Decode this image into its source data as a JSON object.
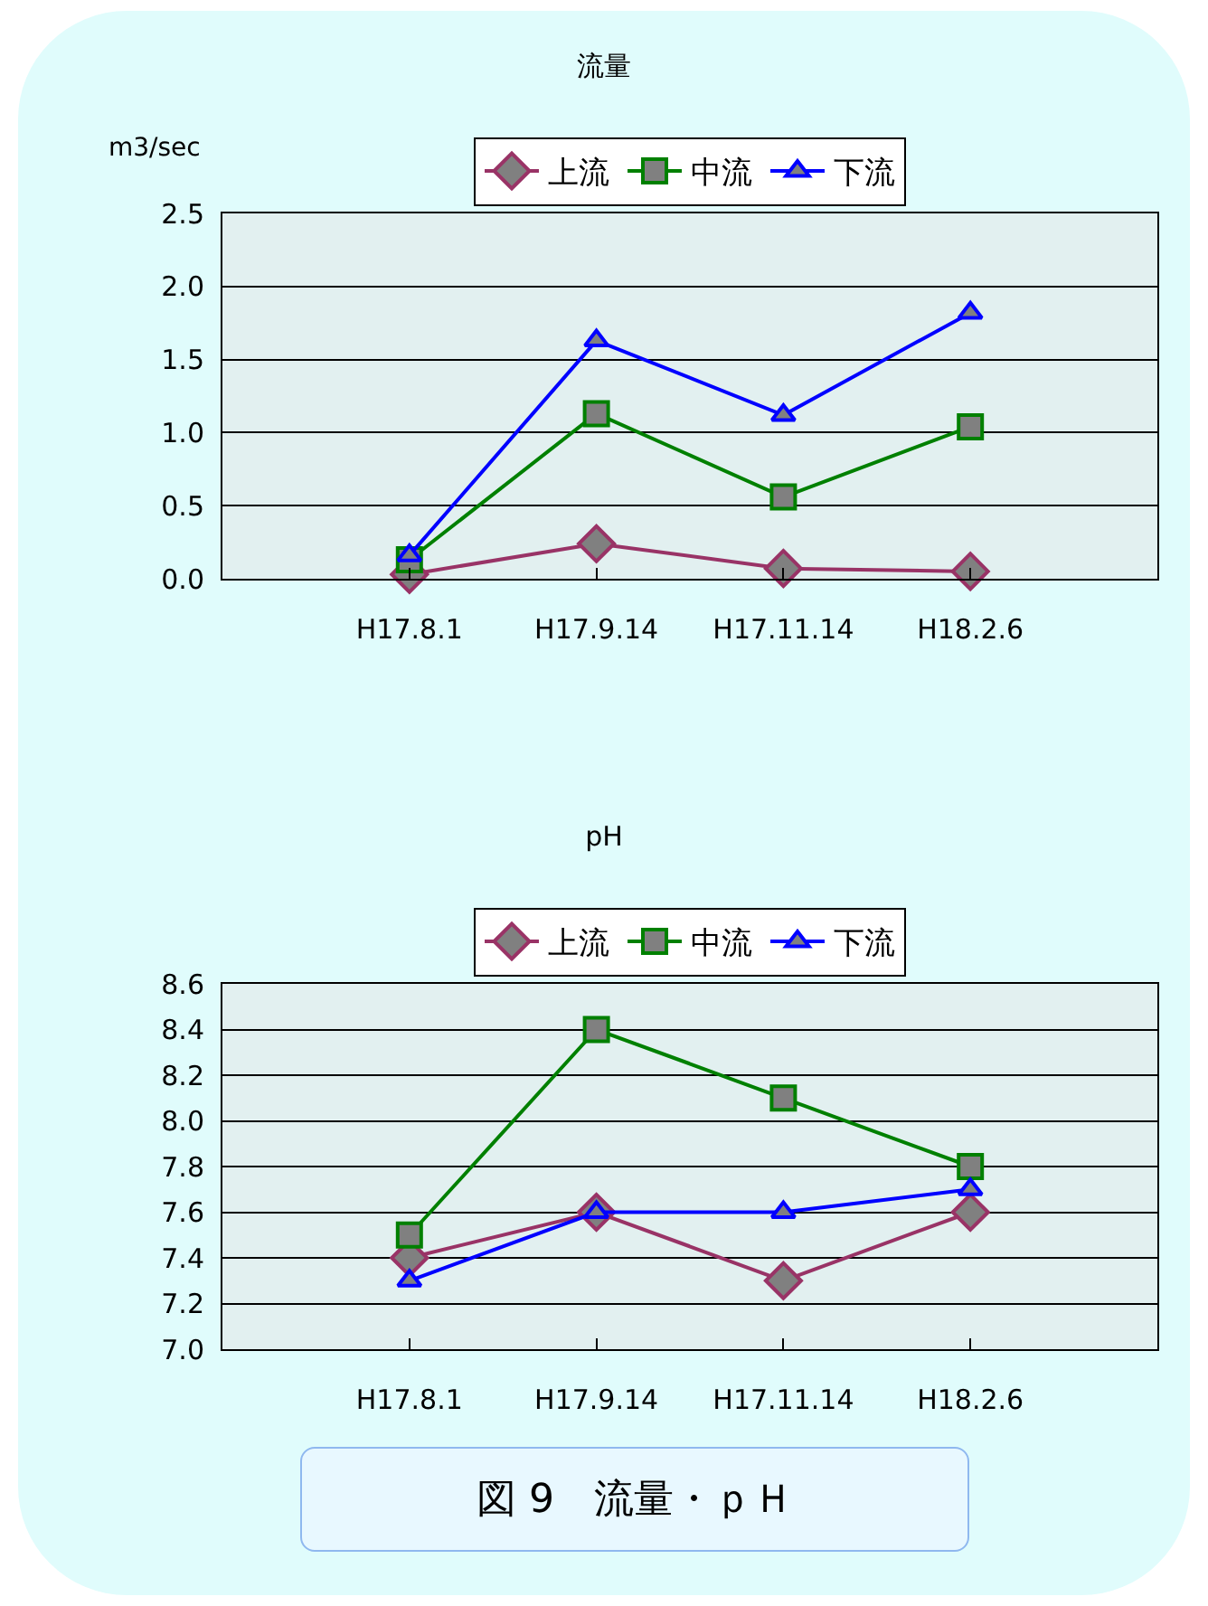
{
  "chart_data": [
    {
      "type": "line",
      "title": "流量",
      "ylabel": "m3/sec",
      "categories": [
        "H17.8.1",
        "H17.9.14",
        "H17.11.14",
        "H18.2.6"
      ],
      "ylim": [
        0,
        2.5
      ],
      "yticks": [
        {
          "value": 0,
          "label": "0.0"
        },
        0.5,
        {
          "value": 1,
          "label": "1.0"
        },
        1.5,
        {
          "value": 2,
          "label": "2.0"
        },
        2.5
      ],
      "grid": "y",
      "legend": "top",
      "series": [
        {
          "name": "上流",
          "color": "#993366",
          "marker": "diamond",
          "values": [
            0.03,
            0.24,
            0.07,
            0.05
          ]
        },
        {
          "name": "中流",
          "color": "#008000",
          "marker": "square",
          "values": [
            0.13,
            1.13,
            0.56,
            1.04
          ]
        },
        {
          "name": "下流",
          "color": "#0000ff",
          "marker": "triangle",
          "values": [
            0.16,
            1.63,
            1.12,
            1.82
          ]
        }
      ]
    },
    {
      "type": "line",
      "title": "pH",
      "categories": [
        "H17.8.1",
        "H17.9.14",
        "H17.11.14",
        "H18.2.6"
      ],
      "ylim": [
        7.0,
        8.6
      ],
      "yticks": [
        {
          "value": 7,
          "label": "7.0"
        },
        7.2,
        7.4,
        7.6,
        7.8,
        {
          "value": 8,
          "label": "8.0"
        },
        8.2,
        8.4,
        8.6
      ],
      "grid": "y",
      "legend": "top",
      "annotations": [
        "図 9　流量・ｐＨ"
      ],
      "series": [
        {
          "name": "上流",
          "color": "#993366",
          "marker": "diamond",
          "values": [
            7.4,
            7.6,
            7.3,
            7.6
          ]
        },
        {
          "name": "中流",
          "color": "#008000",
          "marker": "square",
          "values": [
            7.5,
            8.4,
            8.1,
            7.8
          ]
        },
        {
          "name": "下流",
          "color": "#0000ff",
          "marker": "triangle",
          "values": [
            7.3,
            7.6,
            7.6,
            7.7
          ]
        }
      ]
    }
  ]
}
